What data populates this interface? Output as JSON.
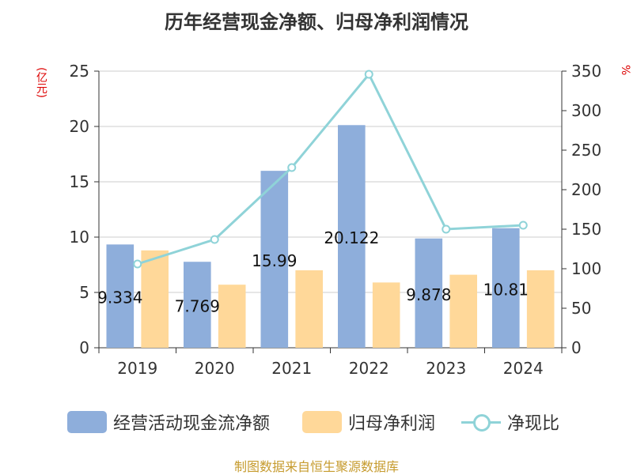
{
  "title": "历年经营现金净额、归母净利润情况",
  "left_unit": "(亿元)",
  "right_unit": "%",
  "source": "制图数据来自恒生聚源数据库",
  "colors": {
    "cash": "#8eaedb",
    "profit": "#ffd899",
    "ratio": "#8fd3d8",
    "unit": "#dd0000",
    "source": "#c69b2e"
  },
  "chart_data": {
    "type": "bar",
    "title": "历年经营现金净额、归母净利润情况",
    "categories": [
      "2019",
      "2020",
      "2021",
      "2022",
      "2023",
      "2024"
    ],
    "series": [
      {
        "name": "经营活动现金流净额",
        "type": "bar",
        "axis": "left",
        "values": [
          9.334,
          7.769,
          15.99,
          20.122,
          9.878,
          10.81
        ],
        "labels": [
          "9.334",
          "7.769",
          "15.99",
          "20.122",
          "9.878",
          "10.81"
        ]
      },
      {
        "name": "归母净利润",
        "type": "bar",
        "axis": "left",
        "values": [
          8.8,
          5.7,
          7.0,
          5.9,
          6.6,
          7.0
        ]
      },
      {
        "name": "净现比",
        "type": "line",
        "axis": "right",
        "values": [
          106,
          137,
          228,
          346,
          150,
          155
        ]
      }
    ],
    "ylabel": "(亿元)",
    "ylim": [
      0,
      25
    ],
    "yticks": [
      "0",
      "5",
      "10",
      "15",
      "20",
      "25"
    ],
    "y2label": "%",
    "y2lim": [
      0,
      350
    ],
    "y2ticks": [
      "0",
      "50",
      "100",
      "150",
      "200",
      "250",
      "300",
      "350"
    ],
    "grid": true,
    "legend": "bottom"
  }
}
